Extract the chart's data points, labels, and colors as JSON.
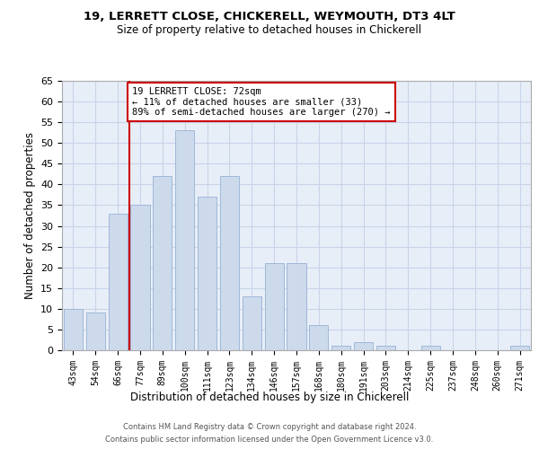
{
  "title_line1": "19, LERRETT CLOSE, CHICKERELL, WEYMOUTH, DT3 4LT",
  "title_line2": "Size of property relative to detached houses in Chickerell",
  "xlabel": "Distribution of detached houses by size in Chickerell",
  "ylabel": "Number of detached properties",
  "categories": [
    "43sqm",
    "54sqm",
    "66sqm",
    "77sqm",
    "89sqm",
    "100sqm",
    "111sqm",
    "123sqm",
    "134sqm",
    "146sqm",
    "157sqm",
    "168sqm",
    "180sqm",
    "191sqm",
    "203sqm",
    "214sqm",
    "225sqm",
    "237sqm",
    "248sqm",
    "260sqm",
    "271sqm"
  ],
  "values": [
    10,
    9,
    33,
    35,
    42,
    53,
    37,
    42,
    13,
    21,
    21,
    6,
    1,
    2,
    1,
    0,
    1,
    0,
    0,
    0,
    1
  ],
  "bar_color": "#cddaec",
  "bar_edge_color": "#9fb8d8",
  "vline_x": 2.5,
  "vline_color": "#cc0000",
  "annotation_text": "19 LERRETT CLOSE: 72sqm\n← 11% of detached houses are smaller (33)\n89% of semi-detached houses are larger (270) →",
  "annotation_box_color": "#cc0000",
  "ylim": [
    0,
    65
  ],
  "yticks": [
    0,
    5,
    10,
    15,
    20,
    25,
    30,
    35,
    40,
    45,
    50,
    55,
    60,
    65
  ],
  "grid_color": "#c8d4e8",
  "bg_color": "#e8eef8",
  "footer1": "Contains HM Land Registry data © Crown copyright and database right 2024.",
  "footer2": "Contains public sector information licensed under the Open Government Licence v3.0."
}
